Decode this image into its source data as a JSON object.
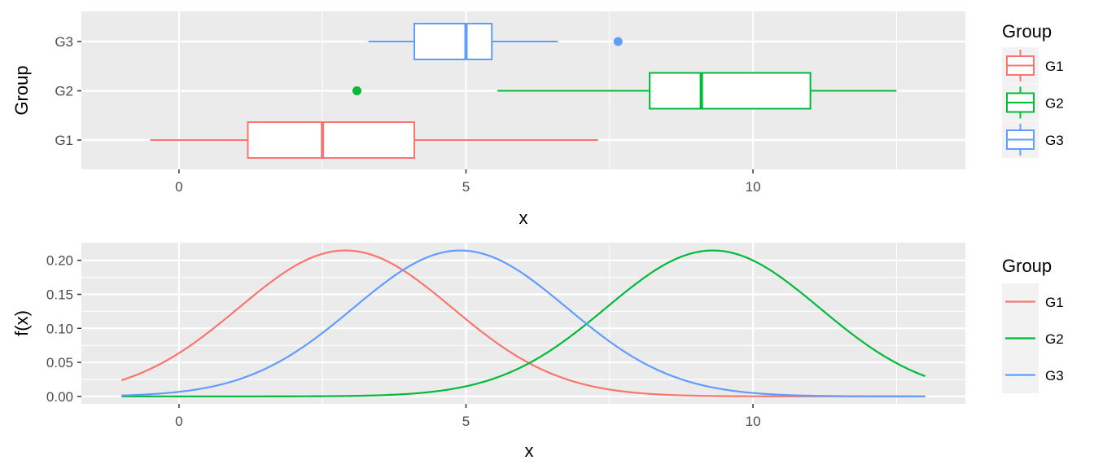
{
  "chart_data": [
    {
      "type": "boxplot",
      "orientation": "horizontal",
      "xlabel": "x",
      "ylabel": "Group",
      "xlim": [
        -1.7,
        13.7
      ],
      "xticks": [
        0,
        5,
        10
      ],
      "grid": true,
      "legend": {
        "title": "Group",
        "placement": "right"
      },
      "series": [
        {
          "name": "G1",
          "color": "#F8766D",
          "whisker_low": -0.5,
          "q1": 1.2,
          "median": 2.5,
          "q3": 4.1,
          "whisker_high": 7.3,
          "outliers": []
        },
        {
          "name": "G2",
          "color": "#00BA38",
          "whisker_low": 5.55,
          "q1": 8.2,
          "median": 9.1,
          "q3": 11.0,
          "whisker_high": 12.5,
          "outliers": [
            3.1
          ]
        },
        {
          "name": "G3",
          "color": "#619CFF",
          "whisker_low": 3.3,
          "q1": 4.1,
          "median": 5.0,
          "q3": 5.45,
          "whisker_high": 6.6,
          "outliers": [
            7.65
          ]
        }
      ]
    },
    {
      "type": "line",
      "xlabel": "x",
      "ylabel": "f(x)",
      "xlim": [
        -1.7,
        13.7
      ],
      "ylim": [
        -0.011,
        0.226
      ],
      "xticks": [
        0,
        5,
        10
      ],
      "yticks": [
        "0.00",
        "0.05",
        "0.10",
        "0.15",
        "0.20"
      ],
      "grid": true,
      "legend": {
        "title": "Group",
        "placement": "right"
      },
      "x_range": [
        -1,
        13
      ],
      "series": [
        {
          "name": "G1",
          "color": "#F8766D",
          "mean": 2.9,
          "sd": 1.86
        },
        {
          "name": "G2",
          "color": "#00BA38",
          "mean": 9.3,
          "sd": 1.86
        },
        {
          "name": "G3",
          "color": "#619CFF",
          "mean": 4.9,
          "sd": 1.86
        }
      ]
    }
  ]
}
